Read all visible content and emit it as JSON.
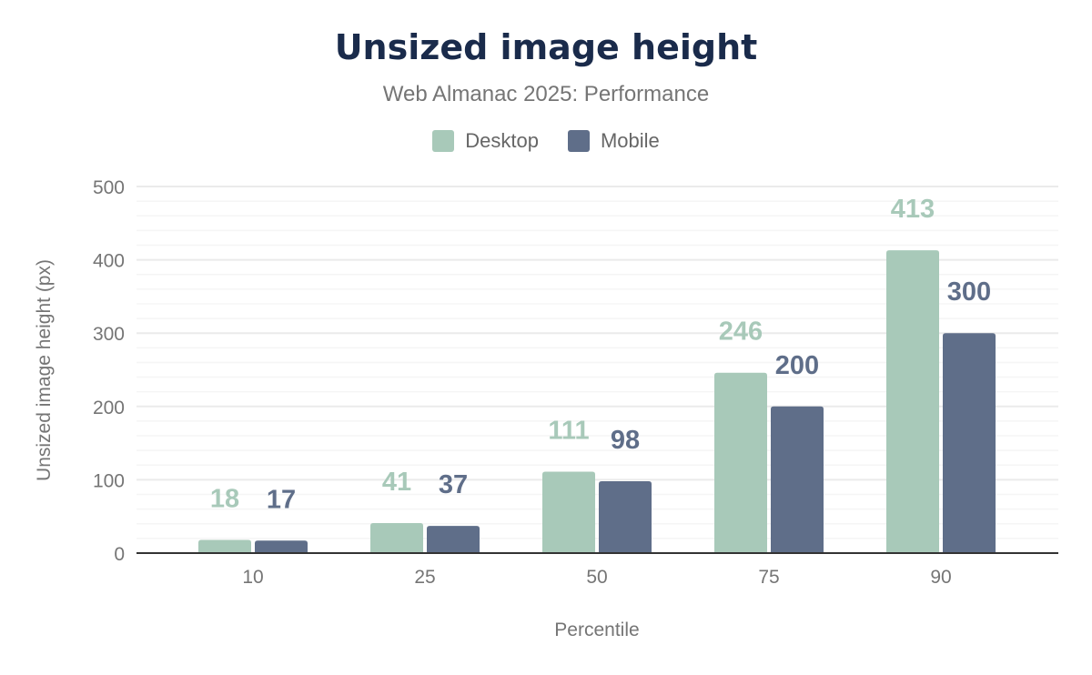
{
  "chart_data": {
    "type": "bar",
    "title": "Unsized image height",
    "subtitle": "Web Almanac 2025: Performance",
    "xlabel": "Percentile",
    "ylabel": "Unsized image height (px)",
    "categories": [
      "10",
      "25",
      "50",
      "75",
      "90"
    ],
    "series": [
      {
        "name": "Desktop",
        "color": "#a8c9b9",
        "values": [
          18,
          41,
          111,
          246,
          413
        ]
      },
      {
        "name": "Mobile",
        "color": "#5f6e89",
        "values": [
          17,
          37,
          98,
          200,
          300
        ]
      }
    ],
    "ylim": [
      0,
      500
    ],
    "yticks": [
      0,
      100,
      200,
      300,
      400,
      500
    ],
    "grid": true,
    "legend": "top-center"
  }
}
